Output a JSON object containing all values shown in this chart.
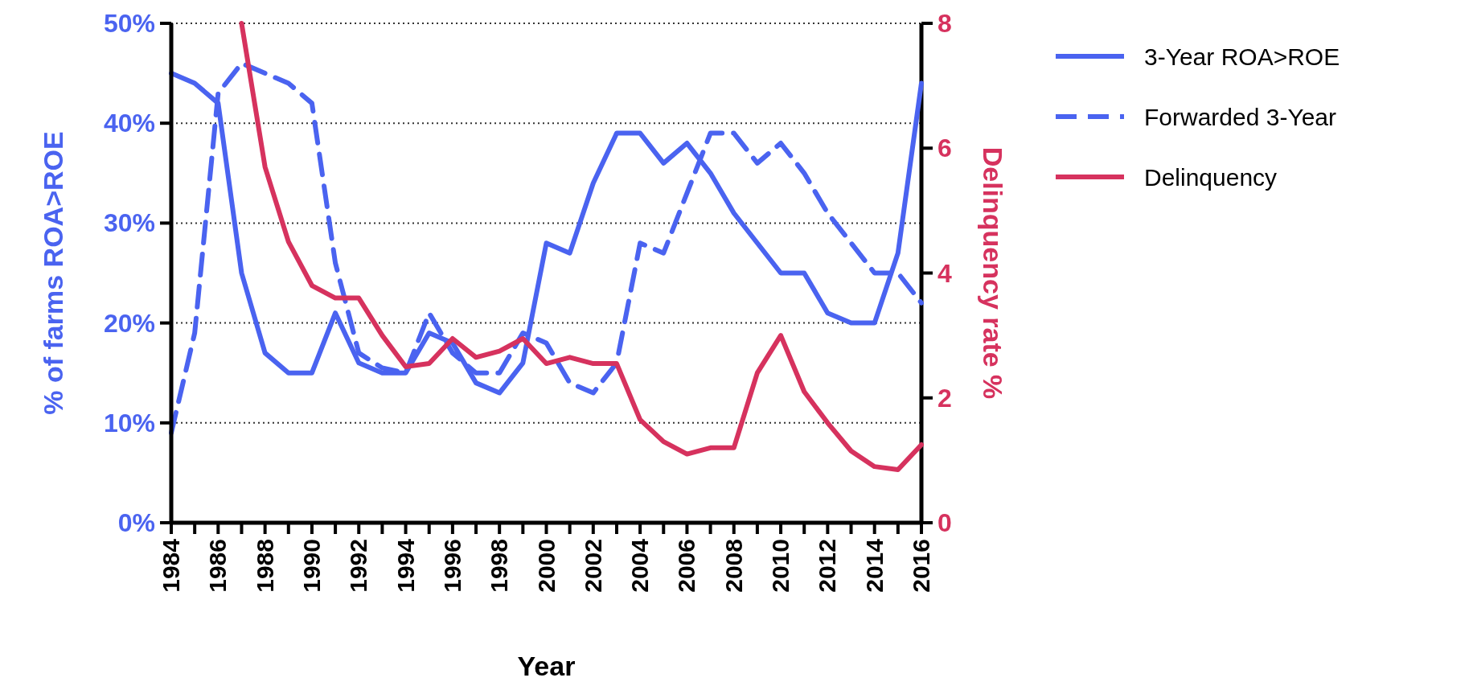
{
  "chart_data": {
    "type": "line",
    "xlabel": "Year",
    "ylabel": "% of farms ROA>ROE",
    "y2label": "Delinquency rate %",
    "x": [
      1984,
      1985,
      1986,
      1987,
      1988,
      1989,
      1990,
      1991,
      1992,
      1993,
      1994,
      1995,
      1996,
      1997,
      1998,
      1999,
      2000,
      2001,
      2002,
      2003,
      2004,
      2005,
      2006,
      2007,
      2008,
      2009,
      2010,
      2011,
      2012,
      2013,
      2014,
      2015,
      2016
    ],
    "series": [
      {
        "name": "3-Year ROA>ROE",
        "color": "#4a63f0",
        "line_style": "solid",
        "values": [
          45,
          44,
          42,
          25,
          17,
          15,
          15,
          21,
          16,
          15,
          15,
          19,
          18,
          14,
          13,
          16,
          28,
          27,
          34,
          39,
          39,
          36,
          38,
          35,
          31,
          28,
          25,
          25,
          21,
          20,
          20,
          27,
          44
        ]
      },
      {
        "name": "Forwarded 3-Year",
        "color": "#4a63f0",
        "line_style": "dashed",
        "values": [
          9,
          19,
          43,
          46,
          45,
          44,
          42,
          26,
          17,
          15.5,
          15,
          21,
          17,
          15,
          15,
          19,
          18,
          14,
          13,
          16,
          28,
          27,
          33,
          39,
          39,
          36,
          38,
          35,
          31,
          28,
          25,
          25,
          22
        ]
      },
      {
        "name": "Delinquency",
        "color": "#d6325e",
        "line_style": "solid",
        "axis": "y2",
        "values": [
          null,
          null,
          null,
          8,
          5.7,
          4.5,
          3.8,
          3.6,
          3.6,
          3,
          2.5,
          2.55,
          2.95,
          2.65,
          2.75,
          2.95,
          2.55,
          2.65,
          2.55,
          2.55,
          1.65,
          1.3,
          1.1,
          1.2,
          1.2,
          2.4,
          3,
          2.1,
          1.6,
          1.15,
          0.9,
          0.85,
          1.25
        ]
      }
    ],
    "xlim": [
      1984,
      2016
    ],
    "xticks": [
      1984,
      {
        "value": 1985,
        "label": null
      },
      1986,
      {
        "value": 1987,
        "label": null
      },
      1988,
      {
        "value": 1989,
        "label": null
      },
      1990,
      {
        "value": 1991,
        "label": null
      },
      1992,
      {
        "value": 1993,
        "label": null
      },
      1994,
      {
        "value": 1995,
        "label": null
      },
      1996,
      {
        "value": 1997,
        "label": null
      },
      1998,
      {
        "value": 1999,
        "label": null
      },
      2000,
      {
        "value": 2001,
        "label": null
      },
      2002,
      {
        "value": 2003,
        "label": null
      },
      2004,
      {
        "value": 2005,
        "label": null
      },
      2006,
      {
        "value": 2007,
        "label": null
      },
      2008,
      {
        "value": 2009,
        "label": null
      },
      2010,
      {
        "value": 2011,
        "label": null
      },
      2012,
      {
        "value": 2013,
        "label": null
      },
      2014,
      {
        "value": 2015,
        "label": null
      },
      2016
    ],
    "ylim": [
      0,
      50
    ],
    "yticks": [
      {
        "value": 0,
        "label": "0%"
      },
      {
        "value": 10,
        "label": "10%"
      },
      {
        "value": 20,
        "label": "20%"
      },
      {
        "value": 30,
        "label": "30%"
      },
      {
        "value": 40,
        "label": "40%"
      },
      {
        "value": 50,
        "label": "50%"
      }
    ],
    "y2lim": [
      0,
      8
    ],
    "y2ticks": [
      0,
      2,
      4,
      6,
      8
    ],
    "grid": "y",
    "legend": "right",
    "marker": "none"
  }
}
